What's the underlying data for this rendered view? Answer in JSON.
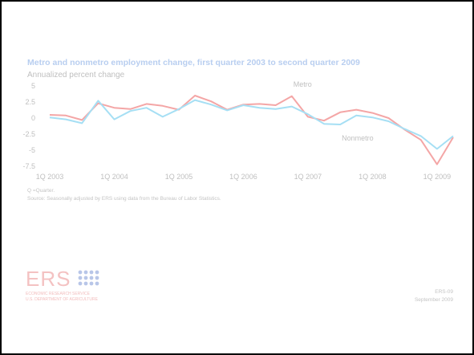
{
  "header": {
    "title": "Metro and nonmetro employment change, first quarter 2003 to second quarter 2009",
    "subtitle": "Annualized percent change"
  },
  "chart_data": {
    "type": "line",
    "title": "Metro and nonmetro employment change, first quarter 2003 to second quarter 2009",
    "ylabel": "Annualized percent change",
    "xlabel": "",
    "ylim": [
      -7.5,
      5
    ],
    "yticks": [
      5,
      2.5,
      0,
      -2.5,
      -5,
      -7.5
    ],
    "ytick_labels": [
      "5",
      "2.5",
      "0",
      "-2.5",
      "-5",
      "-7.5"
    ],
    "x": [
      "1Q 2003",
      "2Q 2003",
      "3Q 2003",
      "4Q 2003",
      "1Q 2004",
      "2Q 2004",
      "3Q 2004",
      "4Q 2004",
      "1Q 2005",
      "2Q 2005",
      "3Q 2005",
      "4Q 2005",
      "1Q 2006",
      "2Q 2006",
      "3Q 2006",
      "4Q 2006",
      "1Q 2007",
      "2Q 2007",
      "3Q 2007",
      "4Q 2007",
      "1Q 2008",
      "2Q 2008",
      "3Q 2008",
      "4Q 2008",
      "1Q 2009",
      "2Q 2009"
    ],
    "xtick_labels": [
      "1Q 2003",
      "1Q 2004",
      "1Q 2005",
      "1Q 2006",
      "1Q 2007",
      "1Q 2008",
      "1Q 2009"
    ],
    "xtick_positions": [
      0,
      4,
      8,
      12,
      16,
      20,
      24
    ],
    "series": [
      {
        "name": "Metro",
        "color": "#f4a6a6",
        "values": [
          0.5,
          0.4,
          -0.3,
          2.3,
          1.6,
          1.4,
          2.2,
          1.9,
          1.3,
          3.5,
          2.6,
          1.3,
          2.1,
          2.2,
          2.0,
          3.4,
          0.2,
          -0.4,
          0.9,
          1.3,
          0.8,
          0.0,
          -1.8,
          -3.4,
          -7.2,
          -3.0
        ]
      },
      {
        "name": "Nonmetro",
        "color": "#a6dff4",
        "values": [
          0.1,
          -0.2,
          -0.8,
          2.7,
          -0.2,
          1.1,
          1.6,
          0.2,
          1.4,
          2.8,
          2.1,
          1.2,
          2.0,
          1.6,
          1.4,
          1.8,
          0.6,
          -0.9,
          -1.0,
          0.4,
          0.1,
          -0.5,
          -1.7,
          -2.8,
          -4.8,
          -2.8
        ]
      }
    ],
    "annotations": [
      {
        "text": "Metro",
        "series": "Metro"
      },
      {
        "text": "Nonmetro",
        "series": "Nonmetro"
      }
    ],
    "grid": false,
    "legend": "inline labels"
  },
  "notes": {
    "abbrev": "Q =Quarter.",
    "source": "Source: Seasonally adjusted by ERS using data from the Bureau of Labor Statistics."
  },
  "logo": {
    "text": "ERS",
    "line1": "ECONOMIC RESEARCH SERVICE",
    "line2": "U.S. DEPARTMENT OF AGRICULTURE"
  },
  "footer": {
    "code": "ERS-09",
    "date": "September 2009"
  },
  "colors": {
    "title": "#b8cef0",
    "metro": "#f4a6a6",
    "nonmetro": "#a6dff4",
    "text_muted": "#bfbfbf",
    "logo": "#f4c2c2",
    "logo_dots": "#b8c6e8"
  }
}
